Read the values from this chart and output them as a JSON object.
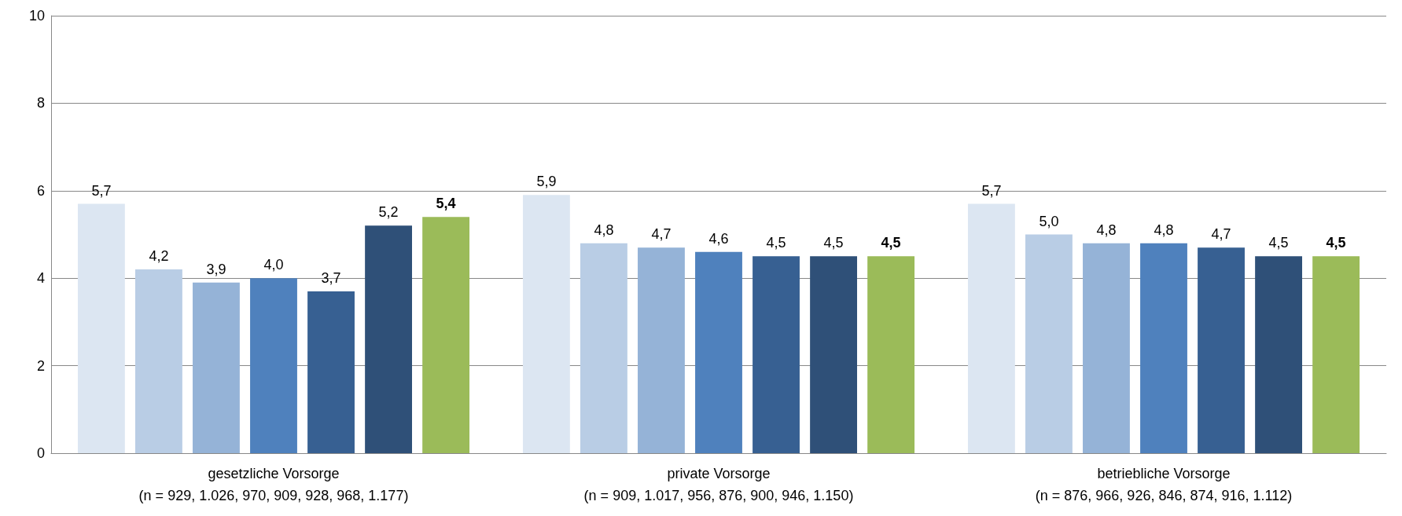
{
  "chart_data": {
    "type": "bar",
    "categories": [
      "gesetzliche Vorsorge\n(n = 929, 1.026, 970, 909, 928, 968, 1.177)",
      "private Vorsorge\n(n = 909, 1.017, 956, 876, 900, 946, 1.150)",
      "betriebliche Vorsorge\n(n = 876, 966, 926, 846, 874, 916, 1.112)"
    ],
    "series": [
      {
        "color": "#dce6f2",
        "values": [
          5.7,
          5.9,
          5.7
        ],
        "value_labels": [
          "5,7",
          "5,9",
          "5,7"
        ]
      },
      {
        "color": "#b9cde5",
        "values": [
          4.2,
          4.8,
          5.0
        ],
        "value_labels": [
          "4,2",
          "4,8",
          "5,0"
        ]
      },
      {
        "color": "#95b3d7",
        "values": [
          3.9,
          4.7,
          4.8
        ],
        "value_labels": [
          "3,9",
          "4,7",
          "4,8"
        ]
      },
      {
        "color": "#4f81bd",
        "values": [
          4.0,
          4.6,
          4.8
        ],
        "value_labels": [
          "4,0",
          "4,6",
          "4,8"
        ]
      },
      {
        "color": "#376092",
        "values": [
          3.7,
          4.5,
          4.7
        ],
        "value_labels": [
          "3,7",
          "4,5",
          "4,7"
        ]
      },
      {
        "color": "#2f5078",
        "values": [
          5.2,
          4.5,
          4.5
        ],
        "value_labels": [
          "5,2",
          "4,5",
          "4,5"
        ]
      },
      {
        "color": "#9bbb59",
        "values": [
          5.4,
          4.5,
          4.5
        ],
        "value_labels": [
          "5,4",
          "4,5",
          "4,5"
        ]
      }
    ],
    "ylim": [
      0,
      10
    ],
    "yticks": [
      0,
      2,
      4,
      6,
      8,
      10
    ],
    "grid": "y"
  }
}
